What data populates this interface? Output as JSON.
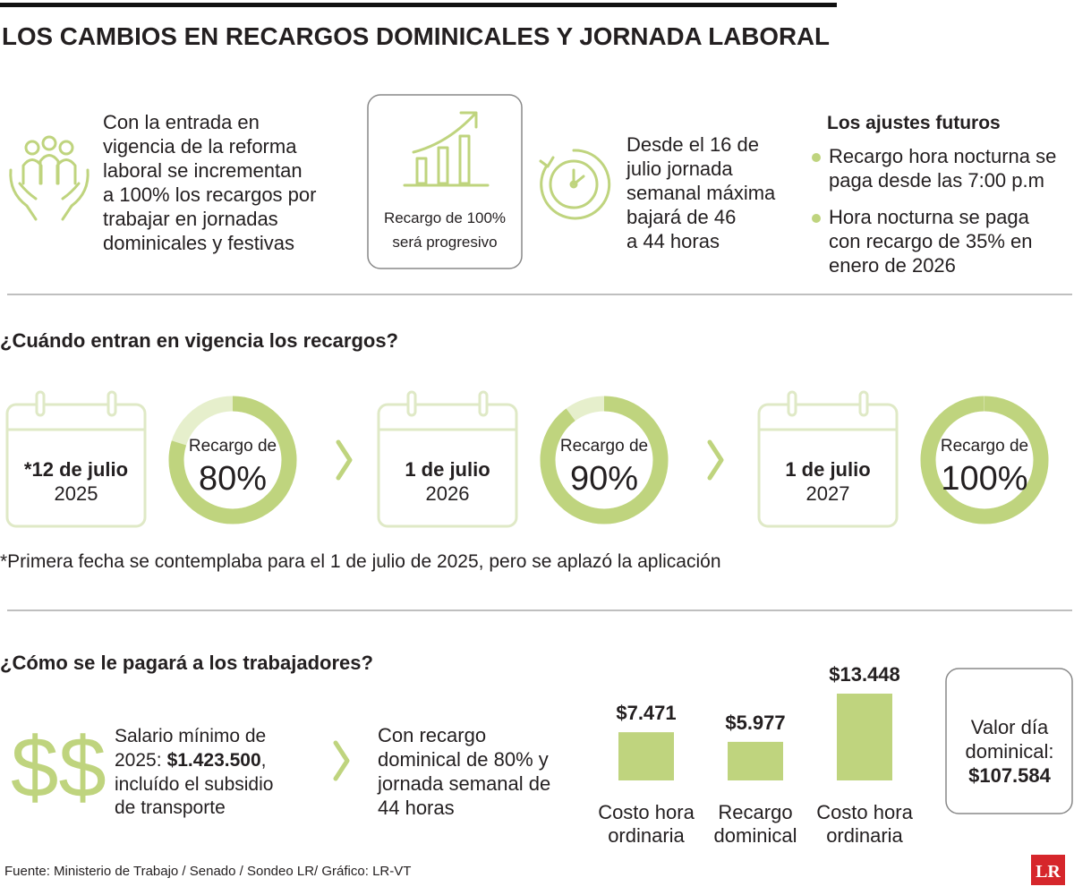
{
  "header": {
    "title": "LOS CAMBIOS EN RECARGOS DOMINICALES Y JORNADA LABORAL"
  },
  "intro": {
    "reform_text": [
      "Con la entrada en",
      "vigencia de la reforma",
      "laboral se incrementan",
      "a 100% los recargos por",
      "trabajar en jornadas",
      "dominicales y festivas"
    ],
    "box_text": [
      "Recargo de 100%",
      "será progresivo"
    ],
    "hours_text": [
      "Desde el 16 de",
      "julio jornada",
      "semanal máxima",
      "bajará de 46",
      "a 44 horas"
    ],
    "future": {
      "title": "Los ajustes futuros",
      "bullets": [
        [
          "Recargo hora nocturna se",
          "paga desde las 7:00 p.m"
        ],
        [
          "Hora nocturna se paga",
          "con recargo de 35% en",
          "enero de 2026"
        ]
      ]
    }
  },
  "timeline": {
    "title": "¿Cuándo entran en vigencia los recargos?",
    "items": [
      {
        "date": "*12 de julio",
        "year": "2025",
        "label": "Recargo de",
        "percent": 80,
        "percent_label": "80%"
      },
      {
        "date": "1 de julio",
        "year": "2026",
        "label": "Recargo de",
        "percent": 90,
        "percent_label": "90%"
      },
      {
        "date": "1 de julio",
        "year": "2027",
        "label": "Recargo de",
        "percent": 100,
        "percent_label": "100%"
      }
    ],
    "note": "*Primera fecha se contemplaba para el 1 de julio de 2025, pero se aplazó la aplicación"
  },
  "payment": {
    "title": "¿Cómo se le pagará a los trabajadores?",
    "symbol": "$$",
    "salary": {
      "line1": "Salario mínimo de",
      "prefix": "2025:",
      "amount": "$1.423.500",
      "suffix": ",",
      "line3": "incluído el subsidio",
      "line4": "de transporte"
    },
    "condition": [
      "Con recargo",
      "dominical de 80% y",
      "jornada semanal de",
      "44 horas"
    ],
    "bars": {
      "categories": [
        [
          "Costo hora",
          "ordinaria"
        ],
        [
          "Recargo",
          "dominical"
        ],
        [
          "Costo hora",
          "ordinaria"
        ]
      ],
      "values": [
        7471,
        5977,
        13448
      ],
      "value_labels": [
        "$7.471",
        "$5.977",
        "$13.448"
      ],
      "color": "#bfd47e"
    },
    "day_value": [
      "Valor día",
      "dominical:",
      "$107.584"
    ]
  },
  "footer": {
    "source": "Fuente: Ministerio de Trabajo / Senado / Sondeo LR/ Gráfico: LR-VT",
    "logo": "LR"
  }
}
